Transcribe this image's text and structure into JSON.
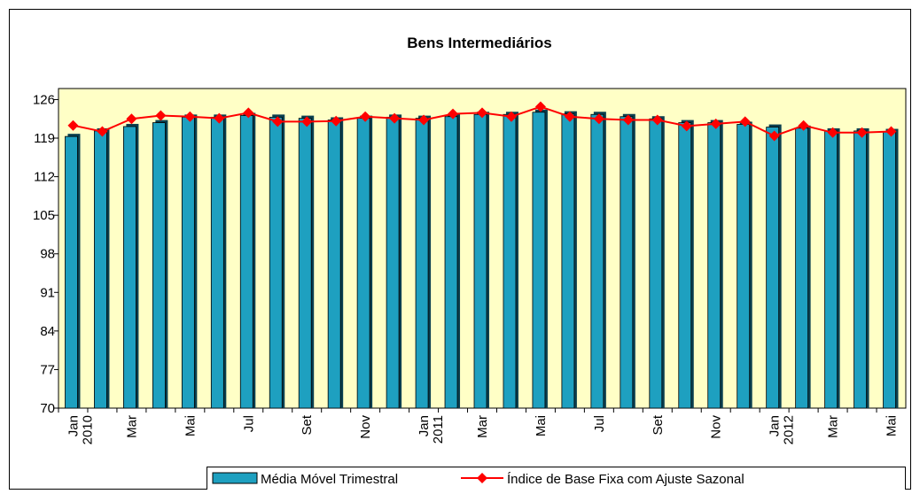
{
  "chart_data": {
    "type": "bar_line",
    "title": "Bens Intermediários",
    "categories": [
      "Jan 2010",
      null,
      "Mar",
      null,
      "Mai",
      null,
      "Jul",
      null,
      "Set",
      null,
      "Nov",
      null,
      "Jan 2011",
      null,
      "Mar",
      null,
      "Mai",
      null,
      "Jul",
      null,
      "Set",
      null,
      "Nov",
      null,
      "Jan 2012",
      null,
      "Mar",
      null,
      "Mai"
    ],
    "series": [
      {
        "name": "Média Móvel Trimestral",
        "type": "bar",
        "color": "#1ea0c0",
        "values": [
          119.3,
          120.3,
          121.1,
          121.8,
          122.8,
          122.8,
          123.1,
          122.8,
          122.6,
          122.3,
          122.6,
          122.8,
          122.6,
          122.9,
          123.3,
          123.3,
          123.7,
          123.4,
          123.3,
          122.9,
          122.5,
          121.8,
          121.8,
          121.5,
          121.0,
          120.8,
          120.3,
          120.3,
          120.2
        ]
      },
      {
        "name": "Índice de Base Fixa com Ajuste Sazonal",
        "type": "line",
        "color": "#ff0000",
        "values": [
          121.3,
          120.2,
          122.5,
          123.1,
          122.9,
          122.6,
          123.6,
          122.0,
          122.0,
          122.1,
          122.9,
          122.6,
          122.3,
          123.4,
          123.6,
          122.9,
          124.7,
          122.9,
          122.5,
          122.3,
          122.3,
          121.2,
          121.6,
          122.0,
          119.4,
          121.3,
          120.0,
          120.0,
          120.2
        ]
      }
    ],
    "ylim": [
      70,
      128
    ],
    "yticks": [
      70,
      77,
      84,
      91,
      98,
      105,
      112,
      119,
      126
    ],
    "grid": false,
    "legend": "bottom"
  }
}
